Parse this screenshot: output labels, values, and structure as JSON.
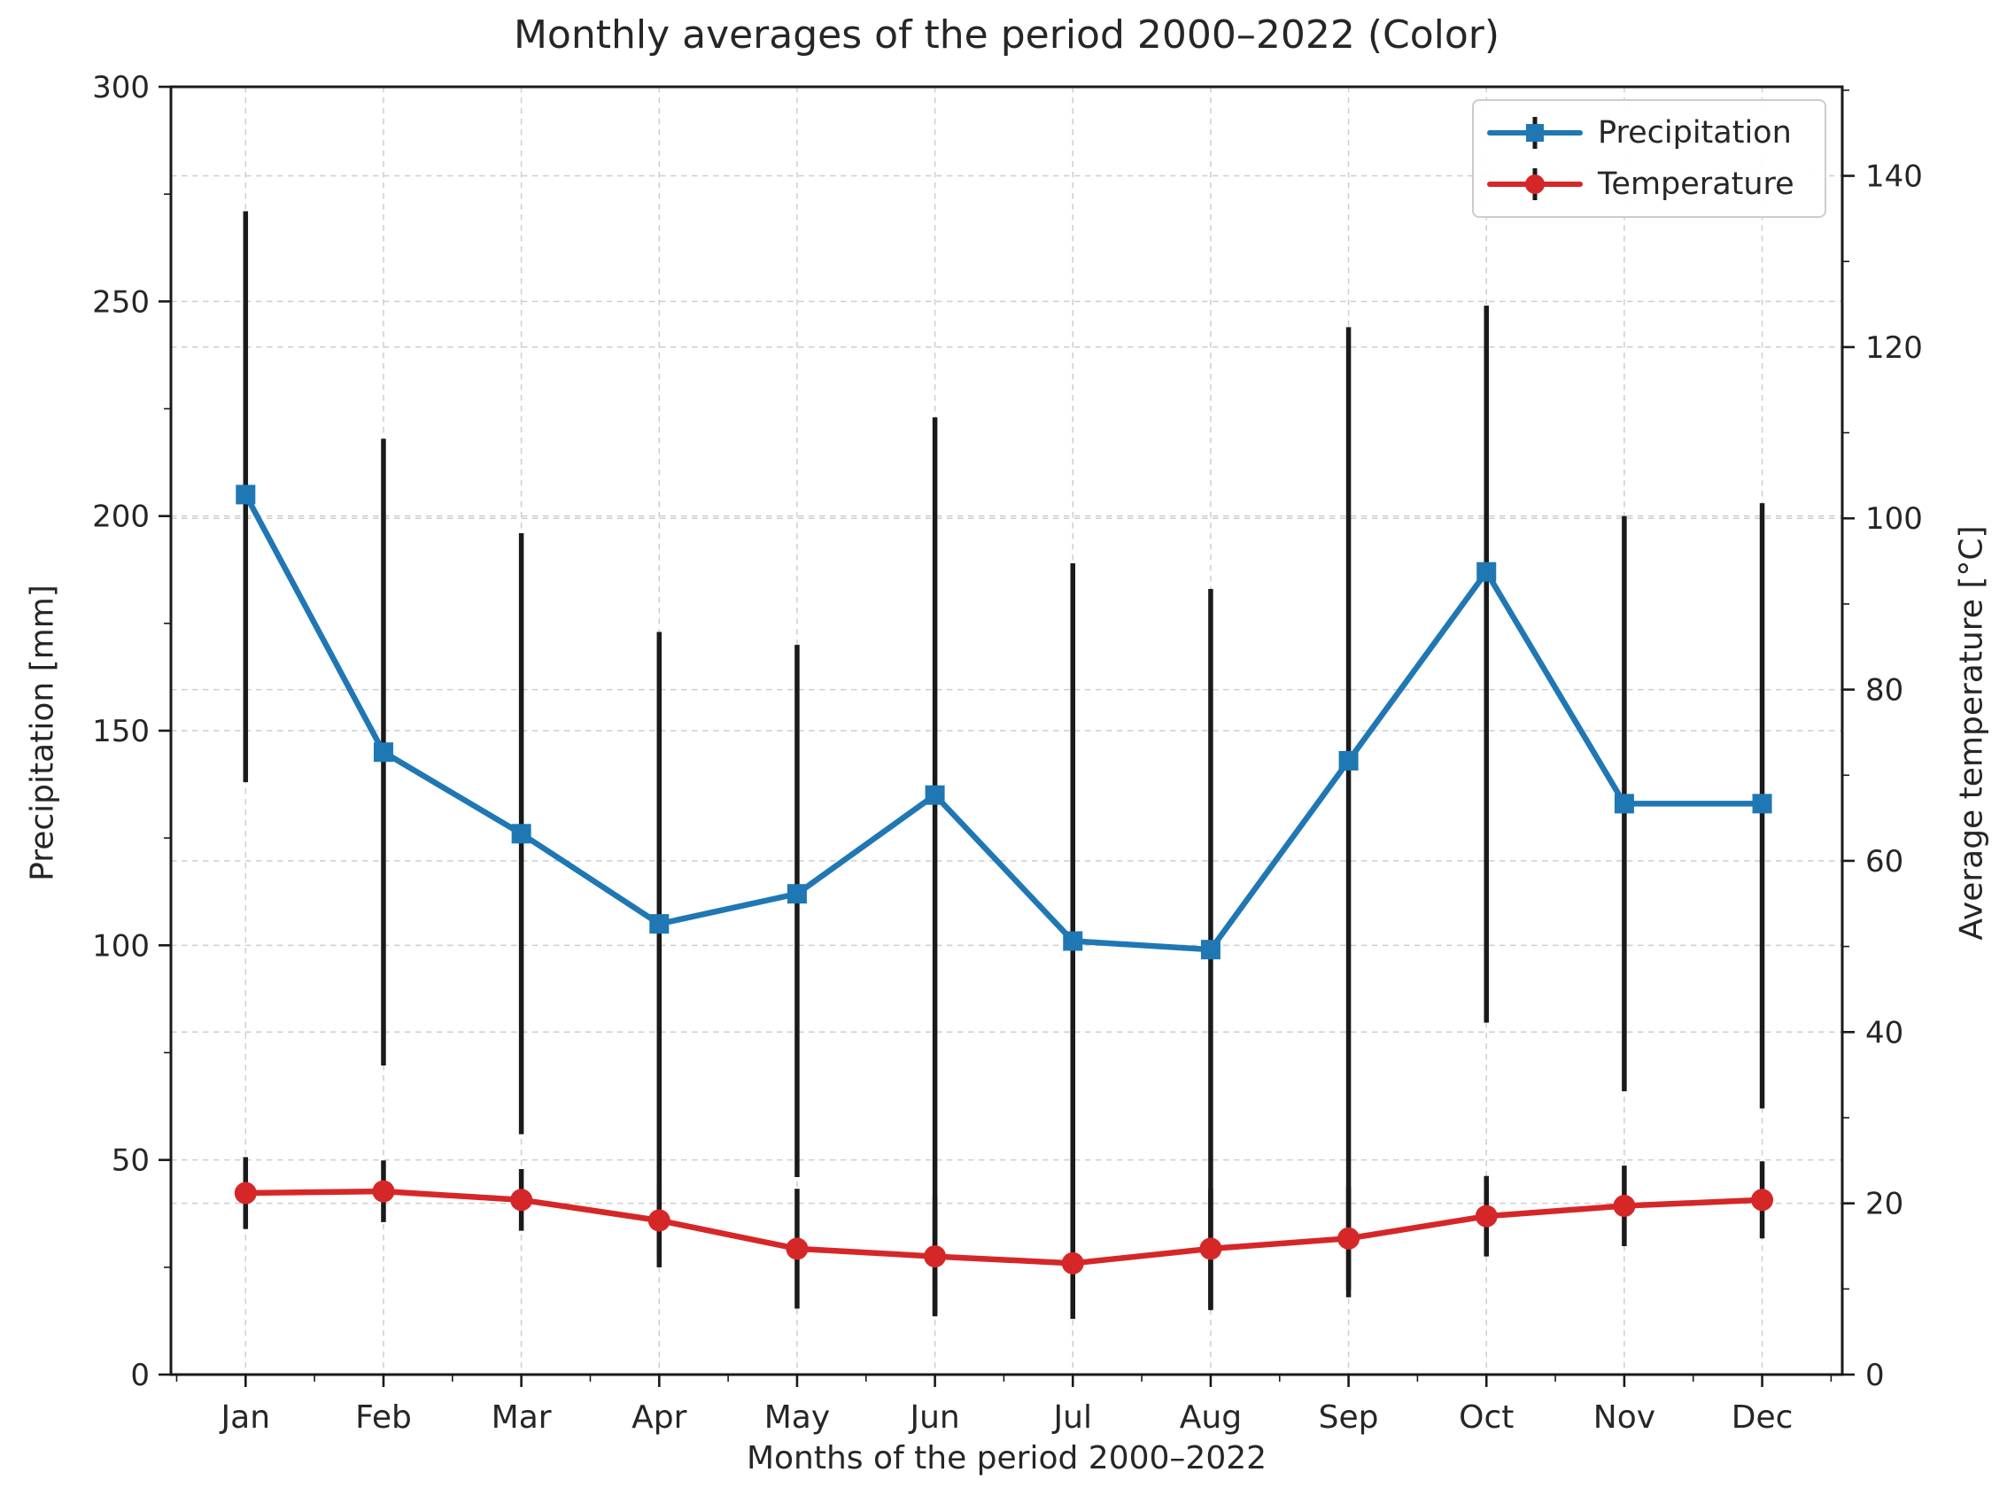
{
  "figure": {
    "title": "Monthly averages of the period 2000–2022 (Color)",
    "x_axis_label": "Months of the period 2000–2022",
    "y_left_label": "Precipitation [mm]",
    "y_right_label": "Average temperature [°C]"
  },
  "legend": {
    "position": "upper right",
    "items": [
      {
        "label": "Precipitation",
        "color": "#1f77b4",
        "marker": "square"
      },
      {
        "label": "Temperature",
        "color": "#d62728",
        "marker": "circle"
      }
    ]
  },
  "chart_data": {
    "type": "line",
    "title": "Monthly averages of the period 2000–2022 (Color)",
    "xlabel": "Months of the period 2000–2022",
    "categories": [
      "Jan",
      "Feb",
      "Mar",
      "Apr",
      "May",
      "Jun",
      "Jul",
      "Aug",
      "Sep",
      "Oct",
      "Nov",
      "Dec"
    ],
    "grid": true,
    "grid_color": "#c6c6c6",
    "error_bar_color": "#1a1a1a",
    "background": "#ffffff",
    "y_left": {
      "label": "Precipitation [mm]",
      "range": [
        0,
        300
      ],
      "major_ticks": [
        0,
        50,
        100,
        150,
        200,
        250,
        300
      ],
      "minor_step": 25
    },
    "y_right": {
      "label": "Average temperature [°C]",
      "range": [
        0,
        150.4
      ],
      "major_ticks": [
        0,
        20,
        40,
        60,
        80,
        100,
        120,
        140
      ],
      "minor_step": 10
    },
    "series": [
      {
        "name": "Precipitation",
        "axis": "left",
        "color": "#1f77b4",
        "marker": "square",
        "values": [
          205,
          145,
          126,
          105,
          112,
          135,
          101,
          99,
          143,
          187,
          133,
          133
        ],
        "bar_lo": [
          138,
          72,
          56,
          25,
          46,
          14,
          13,
          15,
          18,
          82,
          66,
          62
        ],
        "bar_hi": [
          271,
          218,
          196,
          173,
          170,
          223,
          189,
          183,
          244,
          249,
          200,
          203
        ]
      },
      {
        "name": "Temperature",
        "axis": "right",
        "color": "#d62728",
        "marker": "circle",
        "values": [
          21.2,
          21.4,
          20.4,
          18.0,
          14.7,
          13.8,
          13.0,
          14.7,
          15.9,
          18.5,
          19.7,
          20.4
        ],
        "bar_lo": [
          17.0,
          17.8,
          16.8,
          13.5,
          7.7,
          6.8,
          6.5,
          7.7,
          9.9,
          13.8,
          15.0,
          15.9
        ],
        "bar_hi": [
          25.4,
          25.0,
          24.0,
          22.5,
          21.7,
          20.8,
          19.5,
          21.7,
          21.9,
          23.2,
          24.4,
          24.9
        ]
      }
    ]
  }
}
